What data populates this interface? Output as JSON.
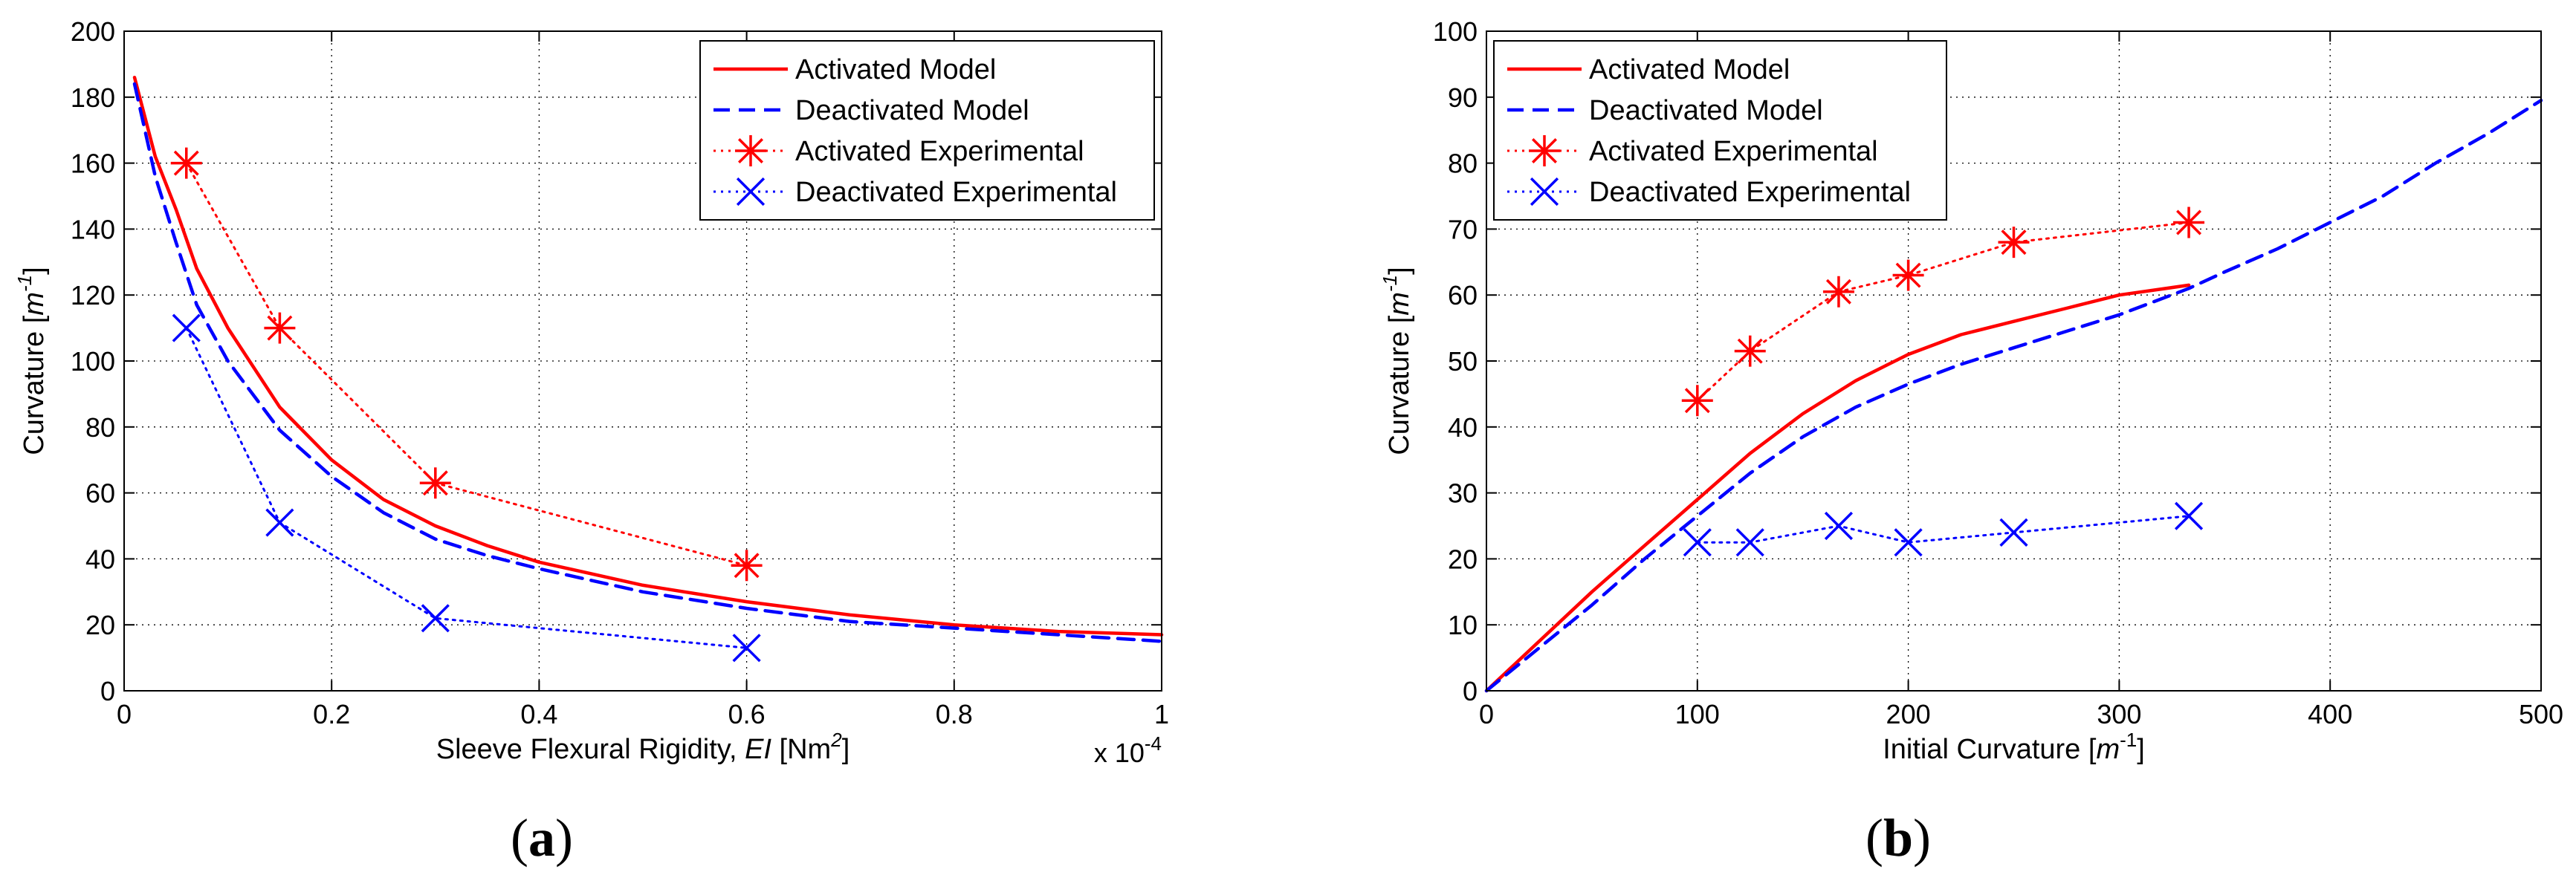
{
  "chart_data": [
    {
      "type": "line",
      "caption": "a",
      "xlabel": {
        "main": "Sleeve Flexural Rigidity, ",
        "var": "EI",
        "unit_pre": " [Nm",
        "sup": "2",
        "unit_post": "]"
      },
      "ylabel": {
        "main": "Curvature [",
        "var": "m",
        "sup": "-1",
        "post": "]"
      },
      "xlim": [
        0,
        1.0
      ],
      "ylim": [
        0,
        200
      ],
      "xticks": [
        0,
        0.2,
        0.4,
        0.6,
        0.8,
        1.0
      ],
      "xtick_labels": [
        "0",
        "0.2",
        "0.4",
        "0.6",
        "0.8",
        "1"
      ],
      "yticks": [
        0,
        20,
        40,
        60,
        80,
        100,
        120,
        140,
        160,
        180,
        200
      ],
      "ytick_labels": [
        "0",
        "20",
        "40",
        "60",
        "80",
        "100",
        "120",
        "140",
        "160",
        "180",
        "200"
      ],
      "x_multiplier": {
        "base": "x 10",
        "exp": "-4"
      },
      "grid": true,
      "legend_position": "top-right",
      "series": [
        {
          "name": "Activated Model",
          "color": "#ff0000",
          "style": "solid",
          "marker": "none",
          "x": [
            0.01,
            0.03,
            0.05,
            0.07,
            0.1,
            0.15,
            0.2,
            0.25,
            0.3,
            0.35,
            0.4,
            0.5,
            0.6,
            0.7,
            0.8,
            0.9,
            1.0
          ],
          "y": [
            186,
            162,
            146,
            128,
            110,
            86,
            70,
            58,
            50,
            44,
            39,
            32,
            27,
            23,
            20,
            18,
            17
          ]
        },
        {
          "name": "Deactivated Model",
          "color": "#0000ff",
          "style": "dashed",
          "marker": "none",
          "x": [
            0.01,
            0.03,
            0.05,
            0.07,
            0.1,
            0.15,
            0.2,
            0.25,
            0.3,
            0.35,
            0.4,
            0.5,
            0.6,
            0.7,
            0.8,
            0.9,
            1.0
          ],
          "y": [
            184,
            156,
            136,
            117,
            100,
            79,
            65,
            54,
            46,
            41,
            37,
            30,
            25,
            21,
            19,
            17,
            15
          ]
        },
        {
          "name": "Activated Experimental",
          "color": "#ff0000",
          "style": "dotted",
          "marker": "asterisk",
          "x": [
            0.06,
            0.15,
            0.3,
            0.6
          ],
          "y": [
            160,
            110,
            63,
            38
          ]
        },
        {
          "name": "Deactivated Experimental",
          "color": "#0000ff",
          "style": "dotted",
          "marker": "x",
          "x": [
            0.06,
            0.15,
            0.3,
            0.6
          ],
          "y": [
            110,
            51,
            22,
            13
          ]
        }
      ]
    },
    {
      "type": "line",
      "caption": "b",
      "xlabel": {
        "main": "Initial Curvature [",
        "var": "m",
        "sup": "-1",
        "post": "]"
      },
      "ylabel": {
        "main": "Curvature [",
        "var": "m",
        "sup": "-1",
        "post": "]"
      },
      "xlim": [
        0,
        500
      ],
      "ylim": [
        0,
        100
      ],
      "xticks": [
        0,
        100,
        200,
        300,
        400,
        500
      ],
      "xtick_labels": [
        "0",
        "100",
        "200",
        "300",
        "400",
        "500"
      ],
      "yticks": [
        0,
        10,
        20,
        30,
        40,
        50,
        60,
        70,
        80,
        90,
        100
      ],
      "ytick_labels": [
        "0",
        "10",
        "20",
        "30",
        "40",
        "50",
        "60",
        "70",
        "80",
        "90",
        "100"
      ],
      "grid": true,
      "legend_position": "top-left",
      "series": [
        {
          "name": "Activated Model",
          "color": "#ff0000",
          "style": "solid",
          "marker": "none",
          "x": [
            0,
            25,
            50,
            75,
            100,
            125,
            150,
            175,
            200,
            225,
            250,
            275,
            300,
            333
          ],
          "y": [
            0,
            7.5,
            15,
            22,
            29,
            36,
            42,
            47,
            51,
            54,
            56,
            58,
            60,
            61.5
          ]
        },
        {
          "name": "Deactivated Model",
          "color": "#0000ff",
          "style": "dashed",
          "marker": "none",
          "x": [
            0,
            25,
            50,
            75,
            100,
            125,
            150,
            175,
            200,
            225,
            250,
            275,
            300,
            333,
            350,
            375,
            400,
            425,
            450,
            475,
            500
          ],
          "y": [
            0,
            6.5,
            13,
            20,
            26.5,
            33,
            38.5,
            43,
            46.5,
            49.5,
            52,
            54.5,
            57,
            61,
            63.5,
            67,
            71,
            75,
            80,
            84.5,
            89.5
          ]
        },
        {
          "name": "Activated Experimental",
          "color": "#ff0000",
          "style": "dotted",
          "marker": "asterisk",
          "x": [
            100,
            125,
            167,
            200,
            250,
            333
          ],
          "y": [
            44,
            51.5,
            60.5,
            63,
            68,
            71
          ]
        },
        {
          "name": "Deactivated Experimental",
          "color": "#0000ff",
          "style": "dotted",
          "marker": "x",
          "x": [
            100,
            125,
            167,
            200,
            250,
            333
          ],
          "y": [
            22.5,
            22.5,
            25,
            22.5,
            24,
            26.5
          ]
        }
      ]
    }
  ]
}
